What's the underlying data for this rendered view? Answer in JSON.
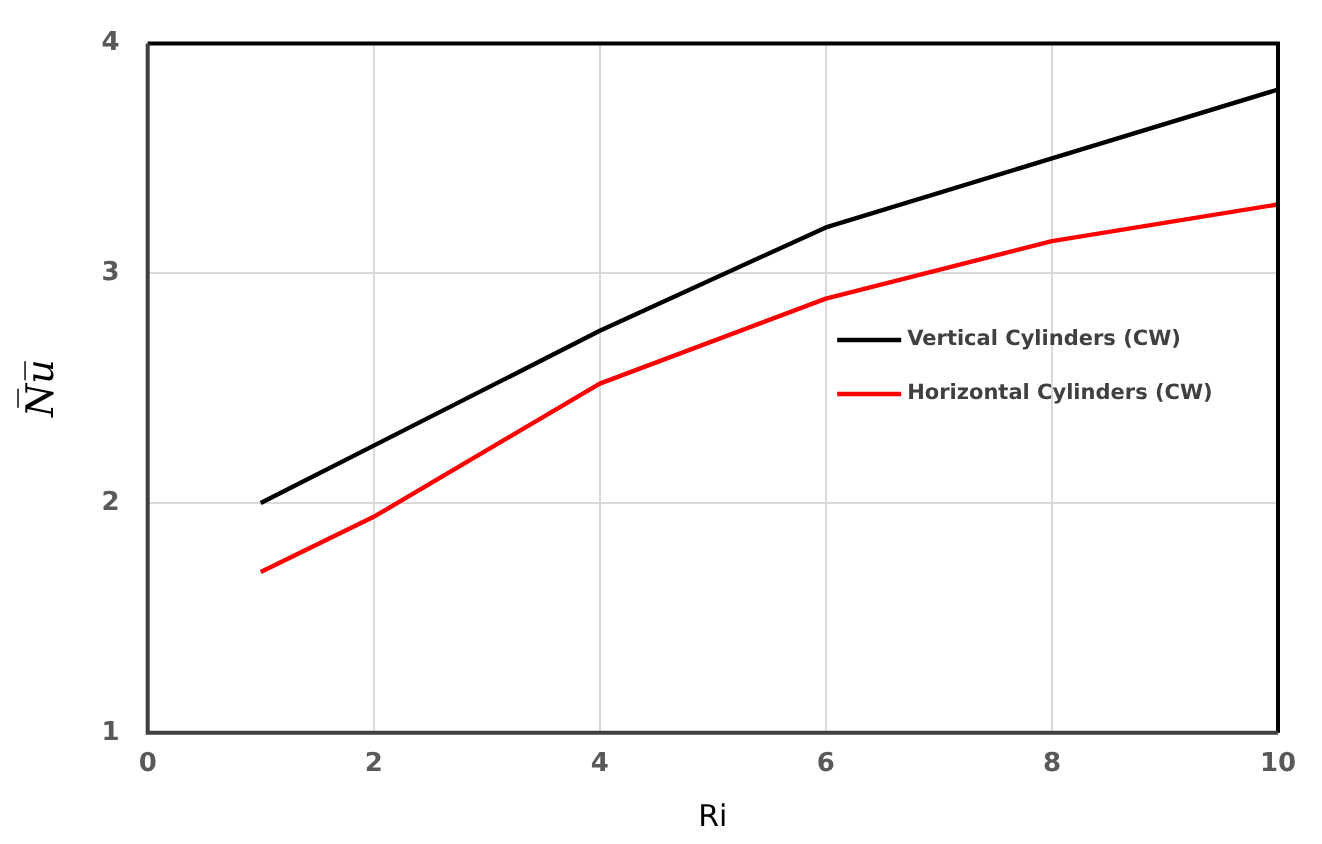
{
  "chart_data": {
    "type": "line",
    "xlabel": "Ri",
    "ylabel": "N̅u̅",
    "x": [
      1,
      2,
      4,
      6,
      8,
      10
    ],
    "series": [
      {
        "name": "Vertical Cylinders (CW)",
        "color": "#000000",
        "values": [
          2.0,
          2.25,
          2.75,
          3.2,
          3.5,
          3.8
        ]
      },
      {
        "name": "Horizontal Cylinders (CW)",
        "color": "#ff0000",
        "values": [
          1.7,
          1.94,
          2.52,
          2.89,
          3.14,
          3.3
        ]
      }
    ],
    "xlim": [
      0,
      10
    ],
    "xticks": [
      0,
      2,
      4,
      6,
      8,
      10
    ],
    "ylim": [
      1,
      4
    ],
    "yticks": [
      1,
      2,
      3,
      4
    ],
    "grid": true,
    "legend": "right",
    "marker": "none",
    "line_style": "solid"
  }
}
